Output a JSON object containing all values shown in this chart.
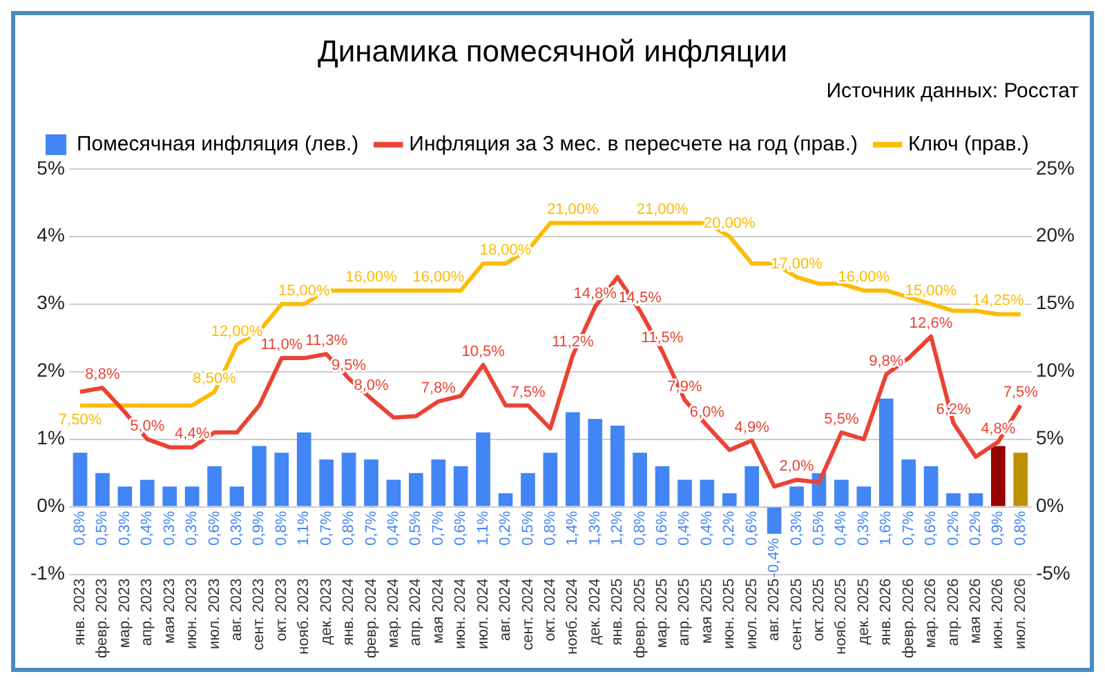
{
  "chart_data": {
    "type": "bar",
    "title": "Динамика помесячной инфляции",
    "annotations": [
      "Источник данных: Росстат"
    ],
    "categories": [
      "янв. 2023",
      "февр. 2023",
      "мар. 2023",
      "апр. 2023",
      "мая 2023",
      "июн. 2023",
      "июл. 2023",
      "авг. 2023",
      "сент. 2023",
      "окт. 2023",
      "нояб. 2023",
      "дек. 2023",
      "янв. 2024",
      "февр. 2024",
      "мар. 2024",
      "апр. 2024",
      "мая 2024",
      "июн. 2024",
      "июл. 2024",
      "авг. 2024",
      "сент. 2024",
      "окт. 2024",
      "нояб. 2024",
      "дек. 2024",
      "янв. 2025",
      "февр. 2025",
      "мар. 2025",
      "апр. 2025",
      "мая 2025",
      "июн. 2025",
      "июл. 2025",
      "авг. 2025",
      "сент. 2025",
      "окт. 2025",
      "нояб. 2025",
      "дек. 2025",
      "янв. 2026",
      "февр. 2026",
      "мар. 2026",
      "апр. 2026",
      "мая 2026",
      "июн. 2026",
      "июл. 2026"
    ],
    "series": [
      {
        "name": "Помесячная инфляция (лев.)",
        "color": "#4285f4",
        "colors": [
          "#4285f4",
          "#4285f4",
          "#4285f4",
          "#4285f4",
          "#4285f4",
          "#4285f4",
          "#4285f4",
          "#4285f4",
          "#4285f4",
          "#4285f4",
          "#4285f4",
          "#4285f4",
          "#4285f4",
          "#4285f4",
          "#4285f4",
          "#4285f4",
          "#4285f4",
          "#4285f4",
          "#4285f4",
          "#4285f4",
          "#4285f4",
          "#4285f4",
          "#4285f4",
          "#4285f4",
          "#4285f4",
          "#4285f4",
          "#4285f4",
          "#4285f4",
          "#4285f4",
          "#4285f4",
          "#4285f4",
          "#4285f4",
          "#4285f4",
          "#4285f4",
          "#4285f4",
          "#4285f4",
          "#4285f4",
          "#4285f4",
          "#4285f4",
          "#4285f4",
          "#4285f4",
          "#990000",
          "#bf9000"
        ],
        "values": [
          0.8,
          0.5,
          0.3,
          0.4,
          0.3,
          0.3,
          0.6,
          0.3,
          0.9,
          0.8,
          1.1,
          0.7,
          0.8,
          0.7,
          0.4,
          0.5,
          0.7,
          0.6,
          1.1,
          0.2,
          0.5,
          0.8,
          1.4,
          1.3,
          1.2,
          0.8,
          0.6,
          0.4,
          0.4,
          0.2,
          0.6,
          -0.4,
          0.3,
          0.5,
          0.4,
          0.3,
          1.6,
          0.7,
          0.6,
          0.2,
          0.2,
          0.9,
          0.8
        ],
        "value_labels": [
          "0,8%",
          "0,5%",
          "0,3%",
          "0,4%",
          "0,3%",
          "0,3%",
          "0,6%",
          "0,3%",
          "0,9%",
          "0,8%",
          "1,1%",
          "0,7%",
          "0,8%",
          "0,7%",
          "0,4%",
          "0,5%",
          "0,7%",
          "0,6%",
          "1,1%",
          "0,2%",
          "0,5%",
          "0,8%",
          "1,4%",
          "1,3%",
          "1,2%",
          "0,8%",
          "0,6%",
          "0,4%",
          "0,4%",
          "0,2%",
          "0,6%",
          "-0,4%",
          "0,3%",
          "0,5%",
          "0,4%",
          "0,3%",
          "1,6%",
          "0,7%",
          "0,6%",
          "0,2%",
          "0,2%",
          "0,9%",
          "0,8%"
        ]
      },
      {
        "name": "Инфляция за 3 мес. в пересчете на год (прав.)",
        "type": "line",
        "axis": "y2",
        "color": "#ea4335",
        "values": [
          8.5,
          8.8,
          7.0,
          5.0,
          4.4,
          4.4,
          5.5,
          5.5,
          7.5,
          11.0,
          11.0,
          11.3,
          9.5,
          8.0,
          6.6,
          6.7,
          7.8,
          8.2,
          10.5,
          7.5,
          7.5,
          5.8,
          11.2,
          14.8,
          17.0,
          14.5,
          11.5,
          7.9,
          6.0,
          4.2,
          4.9,
          1.5,
          2.0,
          1.8,
          5.5,
          5.0,
          9.8,
          11.0,
          12.6,
          6.2,
          3.7,
          4.8,
          7.5
        ],
        "value_labels": [
          null,
          "8,8%",
          null,
          "5,0%",
          null,
          "4,4%",
          null,
          null,
          null,
          "11,0%",
          null,
          "11,3%",
          "9,5%",
          "8,0%",
          null,
          null,
          "7,8%",
          null,
          "10,5%",
          null,
          "7,5%",
          null,
          "11,2%",
          "14,8%",
          null,
          "14,5%",
          "11,5%",
          "7,9%",
          "6,0%",
          null,
          "4,9%",
          null,
          "2,0%",
          null,
          "5,5%",
          null,
          "9,8%",
          null,
          "12,6%",
          "6,2%",
          null,
          "4,8%",
          "7,5%"
        ]
      },
      {
        "name": "Ключ (прав.)",
        "type": "line",
        "axis": "y2",
        "color": "#fbbc04",
        "values": [
          7.5,
          7.5,
          7.5,
          7.5,
          7.5,
          7.5,
          8.5,
          12,
          13,
          15,
          15,
          16,
          16,
          16,
          16,
          16,
          16,
          16,
          18,
          18,
          19,
          21,
          21,
          21,
          21,
          21,
          21,
          21,
          21,
          20,
          18,
          18,
          17,
          16.5,
          16.5,
          16,
          16,
          15.5,
          15,
          14.5,
          14.5,
          14.25,
          14.25
        ],
        "value_labels": [
          "7,50%",
          null,
          null,
          null,
          null,
          null,
          "8,50%",
          "12,00%",
          null,
          null,
          "15,00%",
          null,
          null,
          "16,00%",
          null,
          null,
          "16,00%",
          null,
          null,
          "18,00%",
          null,
          null,
          "21,00%",
          null,
          null,
          null,
          "21,00%",
          null,
          null,
          "20,00%",
          null,
          null,
          "17,00%",
          null,
          null,
          "16,00%",
          null,
          null,
          "15,00%",
          null,
          null,
          "14,25%",
          null
        ]
      }
    ],
    "ylim": [
      -1,
      5
    ],
    "yticks": [
      {
        "value": -1,
        "label": "-1%"
      },
      {
        "value": 0,
        "label": "0%"
      },
      {
        "value": 1,
        "label": "1%"
      },
      {
        "value": 2,
        "label": "2%"
      },
      {
        "value": 3,
        "label": "3%"
      },
      {
        "value": 4,
        "label": "4%"
      },
      {
        "value": 5,
        "label": "5%"
      }
    ],
    "y2lim": [
      -5,
      25
    ],
    "y2ticks": [
      {
        "value": -5,
        "label": "-5%"
      },
      {
        "value": 0,
        "label": "0%"
      },
      {
        "value": 5,
        "label": "5%"
      },
      {
        "value": 10,
        "label": "10%"
      },
      {
        "value": 15,
        "label": "15%"
      },
      {
        "value": 20,
        "label": "20%"
      },
      {
        "value": 25,
        "label": "25%"
      }
    ],
    "grid": "y",
    "legend": "top",
    "marker": "none",
    "line_style": "solid"
  }
}
